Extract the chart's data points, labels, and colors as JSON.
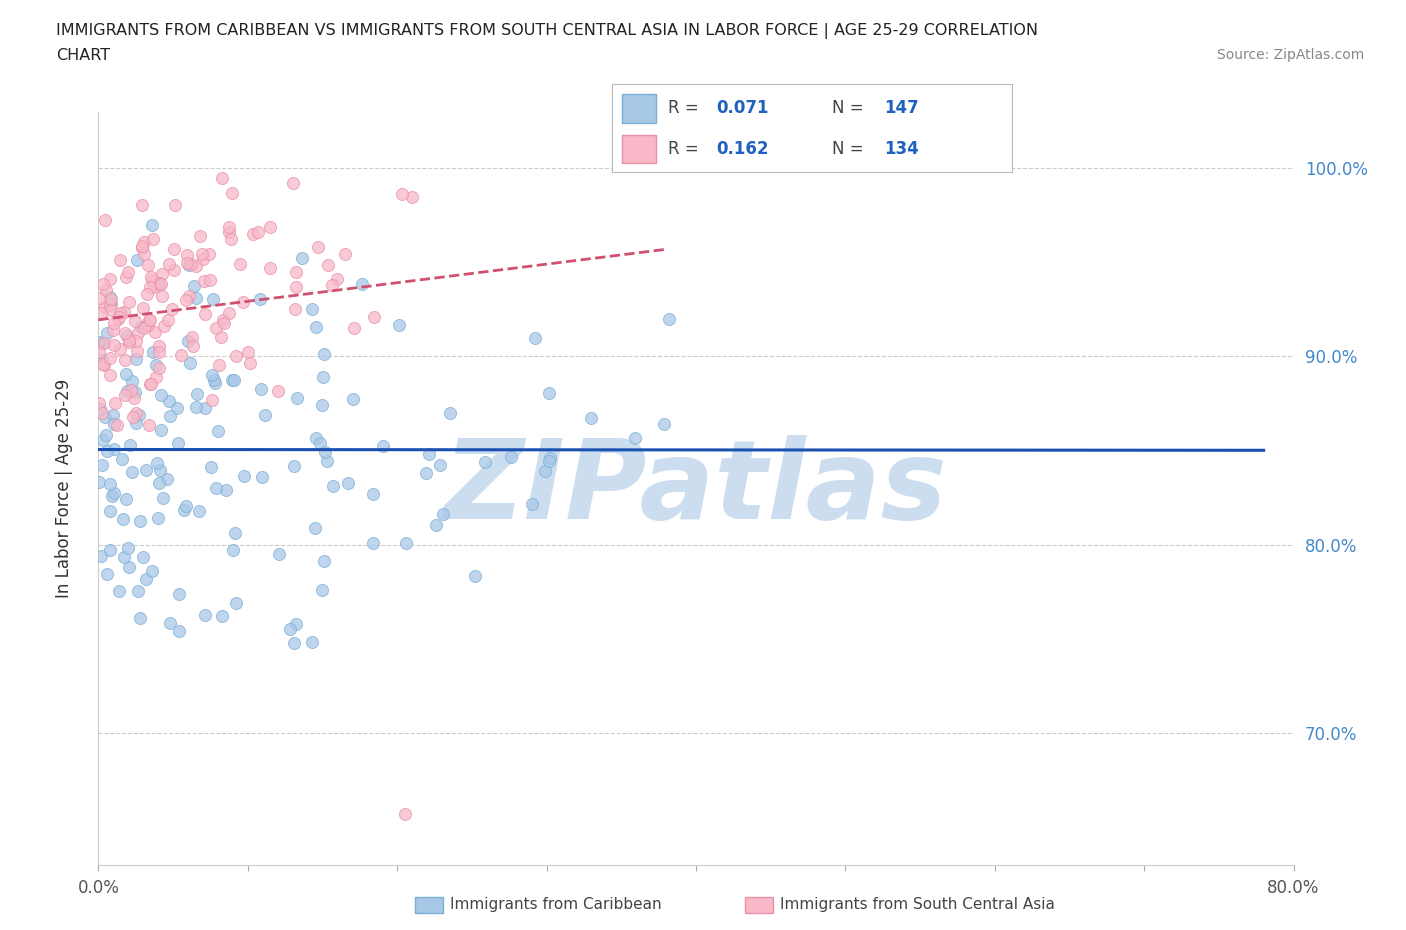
{
  "title_line1": "IMMIGRANTS FROM CARIBBEAN VS IMMIGRANTS FROM SOUTH CENTRAL ASIA IN LABOR FORCE | AGE 25-29 CORRELATION",
  "title_line2": "CHART",
  "source_text": "Source: ZipAtlas.com",
  "ylabel": "In Labor Force | Age 25-29",
  "xlim": [
    0.0,
    0.8
  ],
  "ylim": [
    0.63,
    1.03
  ],
  "xticks": [
    0.0,
    0.1,
    0.2,
    0.3,
    0.4,
    0.5,
    0.6,
    0.7,
    0.8
  ],
  "xticklabels": [
    "0.0%",
    "",
    "",
    "",
    "",
    "",
    "",
    "",
    "80.0%"
  ],
  "yticks": [
    0.7,
    0.8,
    0.9,
    1.0
  ],
  "yticklabels": [
    "70.0%",
    "80.0%",
    "90.0%",
    "100.0%"
  ],
  "caribbean_color": "#a8c8e8",
  "caribbean_edge": "#7bafd4",
  "sca_color": "#f8b8c8",
  "sca_edge": "#e890a8",
  "caribbean_R": 0.071,
  "caribbean_N": 147,
  "sca_R": 0.162,
  "sca_N": 134,
  "legend_R_color": "#2060c0",
  "watermark": "ZIPatlas",
  "watermark_color": "#ccddf0",
  "background_color": "#ffffff",
  "grid_color": "#cccccc",
  "caribbean_trend_color": "#1a50b0",
  "sca_trend_color": "#d05070",
  "right_axis_color": "#4488cc",
  "tick_label_color": "#4488cc"
}
